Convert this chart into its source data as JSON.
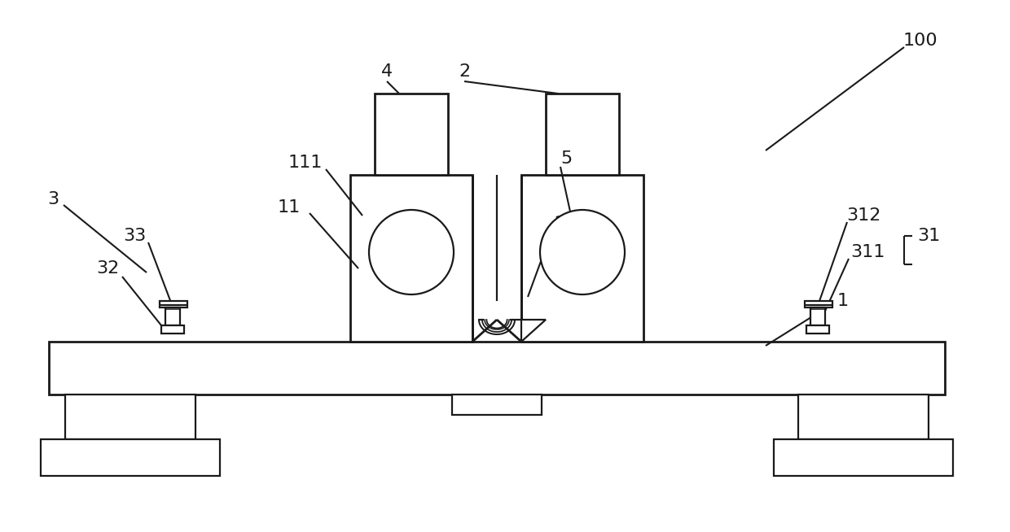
{
  "bg_color": "#ffffff",
  "lc": "#1a1a1a",
  "lw": 1.6,
  "tlw": 2.0,
  "fs": 16,
  "fig_w": 12.4,
  "fig_h": 6.54
}
